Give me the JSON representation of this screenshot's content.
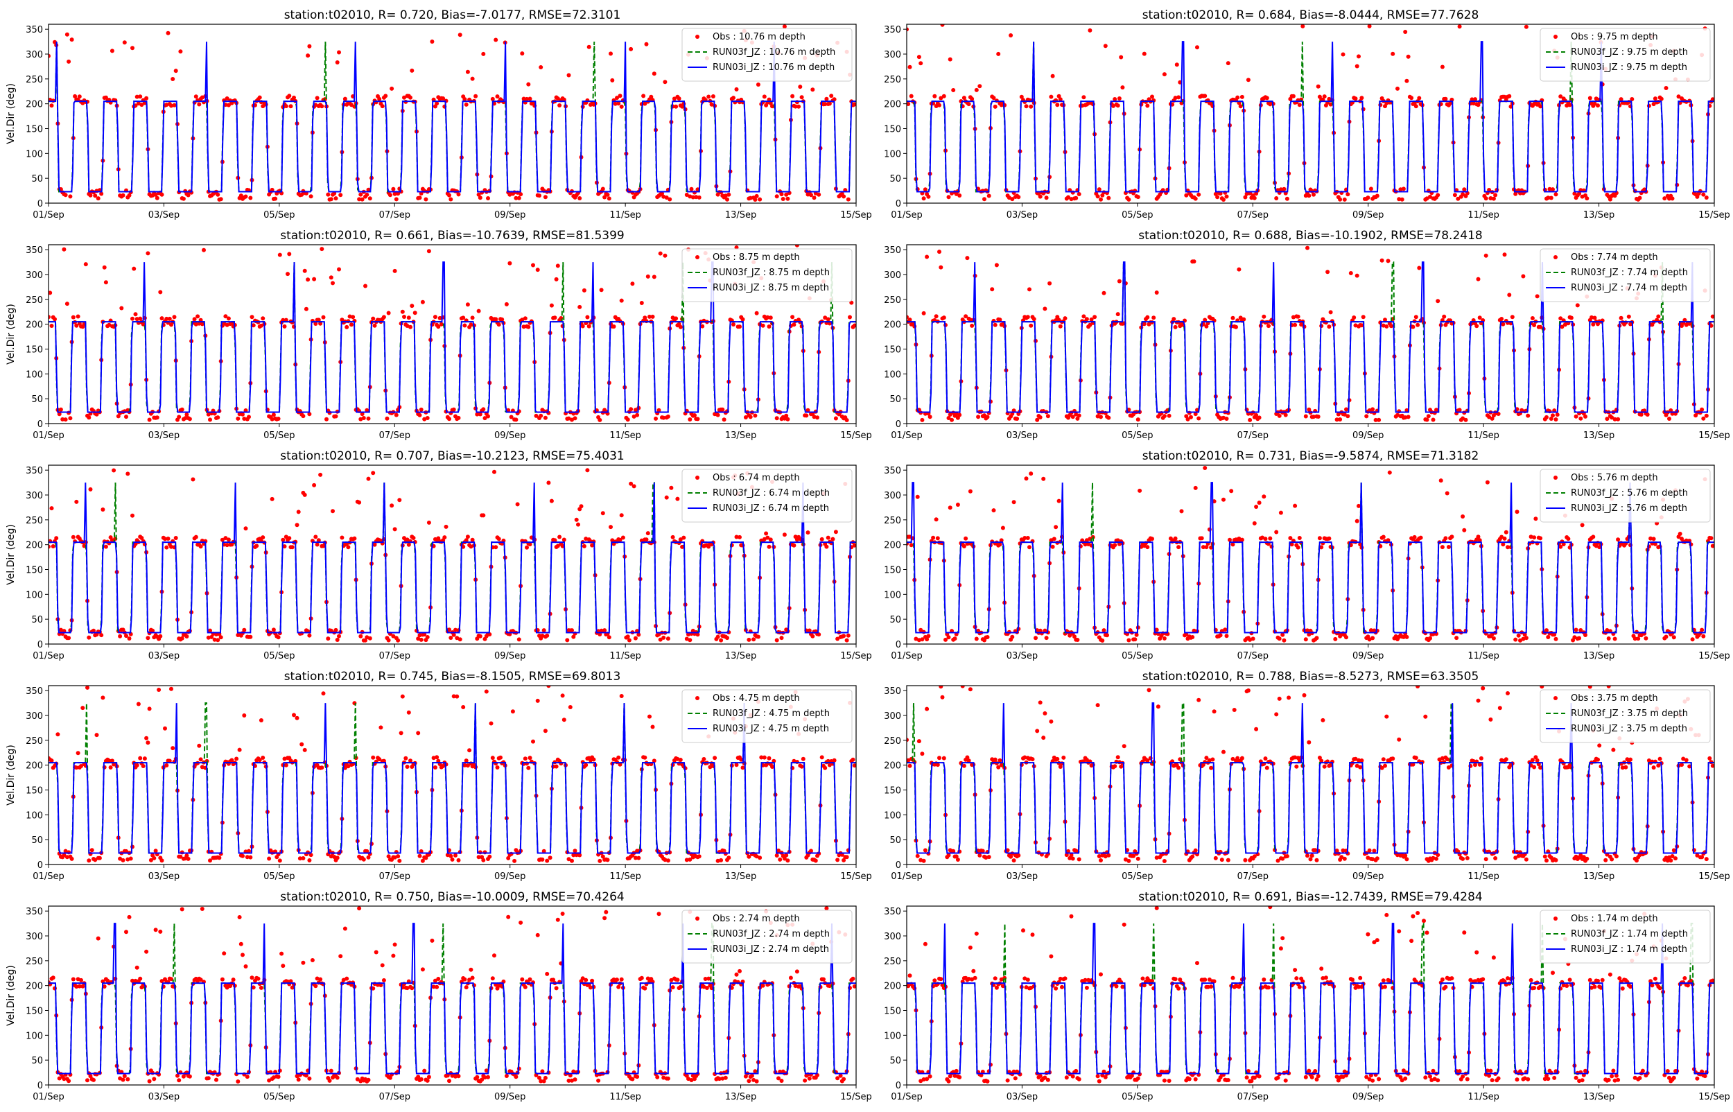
{
  "figure": {
    "colors": {
      "obs": "#ff0000",
      "run03f": "#008000",
      "run03i": "#0000ff"
    }
  },
  "chart_data": [
    {
      "type": "line",
      "title": "station:t02010, R= 0.720, Bias=-7.0177, RMSE=72.3101",
      "ylabel": "Vel.Dir (deg)",
      "xlabel": "",
      "x_ticks": [
        "01/Sep",
        "03/Sep",
        "05/Sep",
        "07/Sep",
        "09/Sep",
        "11/Sep",
        "13/Sep",
        "15/Sep"
      ],
      "y_ticks": [
        0,
        50,
        100,
        150,
        200,
        250,
        300,
        350
      ],
      "xlim": [
        0,
        14
      ],
      "ylim": [
        0,
        360
      ],
      "grid": false,
      "legend": "top-right",
      "series": [
        {
          "name": "Obs : 10.76 m depth",
          "style": "dots"
        },
        {
          "name": "RUN03f_JZ : 10.76 m depth",
          "style": "dashed"
        },
        {
          "name": "RUN03i_JZ : 10.76 m depth",
          "style": "solid"
        }
      ]
    },
    {
      "type": "line",
      "title": "station:t02010, R= 0.684, Bias=-8.0444, RMSE=77.7628",
      "ylabel": "",
      "xlabel": "",
      "x_ticks": [
        "01/Sep",
        "03/Sep",
        "05/Sep",
        "07/Sep",
        "09/Sep",
        "11/Sep",
        "13/Sep",
        "15/Sep"
      ],
      "y_ticks": [
        0,
        50,
        100,
        150,
        200,
        250,
        300,
        350
      ],
      "xlim": [
        0,
        14
      ],
      "ylim": [
        0,
        360
      ],
      "grid": false,
      "legend": "top-right",
      "series": [
        {
          "name": "Obs : 9.75 m depth",
          "style": "dots"
        },
        {
          "name": "RUN03f_JZ : 9.75 m depth",
          "style": "dashed"
        },
        {
          "name": "RUN03i_JZ : 9.75 m depth",
          "style": "solid"
        }
      ]
    },
    {
      "type": "line",
      "title": "station:t02010, R= 0.661, Bias=-10.7639, RMSE=81.5399",
      "ylabel": "Vel.Dir (deg)",
      "xlabel": "",
      "x_ticks": [
        "01/Sep",
        "03/Sep",
        "05/Sep",
        "07/Sep",
        "09/Sep",
        "11/Sep",
        "13/Sep",
        "15/Sep"
      ],
      "y_ticks": [
        0,
        50,
        100,
        150,
        200,
        250,
        300,
        350
      ],
      "xlim": [
        0,
        14
      ],
      "ylim": [
        0,
        360
      ],
      "grid": false,
      "legend": "top-right",
      "series": [
        {
          "name": "Obs : 8.75 m depth",
          "style": "dots"
        },
        {
          "name": "RUN03f_JZ : 8.75 m depth",
          "style": "dashed"
        },
        {
          "name": "RUN03i_JZ : 8.75 m depth",
          "style": "solid"
        }
      ]
    },
    {
      "type": "line",
      "title": "station:t02010, R= 0.688, Bias=-10.1902, RMSE=78.2418",
      "ylabel": "",
      "xlabel": "",
      "x_ticks": [
        "01/Sep",
        "03/Sep",
        "05/Sep",
        "07/Sep",
        "09/Sep",
        "11/Sep",
        "13/Sep",
        "15/Sep"
      ],
      "y_ticks": [
        0,
        50,
        100,
        150,
        200,
        250,
        300,
        350
      ],
      "xlim": [
        0,
        14
      ],
      "ylim": [
        0,
        360
      ],
      "grid": false,
      "legend": "top-right",
      "series": [
        {
          "name": "Obs : 7.74 m depth",
          "style": "dots"
        },
        {
          "name": "RUN03f_JZ : 7.74 m depth",
          "style": "dashed"
        },
        {
          "name": "RUN03i_JZ : 7.74 m depth",
          "style": "solid"
        }
      ]
    },
    {
      "type": "line",
      "title": "station:t02010, R= 0.707, Bias=-10.2123, RMSE=75.4031",
      "ylabel": "Vel.Dir (deg)",
      "xlabel": "",
      "x_ticks": [
        "01/Sep",
        "03/Sep",
        "05/Sep",
        "07/Sep",
        "09/Sep",
        "11/Sep",
        "13/Sep",
        "15/Sep"
      ],
      "y_ticks": [
        0,
        50,
        100,
        150,
        200,
        250,
        300,
        350
      ],
      "xlim": [
        0,
        14
      ],
      "ylim": [
        0,
        360
      ],
      "grid": false,
      "legend": "top-right",
      "series": [
        {
          "name": "Obs : 6.74 m depth",
          "style": "dots"
        },
        {
          "name": "RUN03f_JZ : 6.74 m depth",
          "style": "dashed"
        },
        {
          "name": "RUN03i_JZ : 6.74 m depth",
          "style": "solid"
        }
      ]
    },
    {
      "type": "line",
      "title": "station:t02010, R= 0.731, Bias=-9.5874, RMSE=71.3182",
      "ylabel": "",
      "xlabel": "",
      "x_ticks": [
        "01/Sep",
        "03/Sep",
        "05/Sep",
        "07/Sep",
        "09/Sep",
        "11/Sep",
        "13/Sep",
        "15/Sep"
      ],
      "y_ticks": [
        0,
        50,
        100,
        150,
        200,
        250,
        300,
        350
      ],
      "xlim": [
        0,
        14
      ],
      "ylim": [
        0,
        360
      ],
      "grid": false,
      "legend": "top-right",
      "series": [
        {
          "name": "Obs : 5.76 m depth",
          "style": "dots"
        },
        {
          "name": "RUN03f_JZ : 5.76 m depth",
          "style": "dashed"
        },
        {
          "name": "RUN03i_JZ : 5.76 m depth",
          "style": "solid"
        }
      ]
    },
    {
      "type": "line",
      "title": "station:t02010, R= 0.745, Bias=-8.1505, RMSE=69.8013",
      "ylabel": "Vel.Dir (deg)",
      "xlabel": "",
      "x_ticks": [
        "01/Sep",
        "03/Sep",
        "05/Sep",
        "07/Sep",
        "09/Sep",
        "11/Sep",
        "13/Sep",
        "15/Sep"
      ],
      "y_ticks": [
        0,
        50,
        100,
        150,
        200,
        250,
        300,
        350
      ],
      "xlim": [
        0,
        14
      ],
      "ylim": [
        0,
        360
      ],
      "grid": false,
      "legend": "top-right",
      "series": [
        {
          "name": "Obs : 4.75 m depth",
          "style": "dots"
        },
        {
          "name": "RUN03f_JZ : 4.75 m depth",
          "style": "dashed"
        },
        {
          "name": "RUN03i_JZ : 4.75 m depth",
          "style": "solid"
        }
      ]
    },
    {
      "type": "line",
      "title": "station:t02010, R= 0.788, Bias=-8.5273, RMSE=63.3505",
      "ylabel": "",
      "xlabel": "",
      "x_ticks": [
        "01/Sep",
        "03/Sep",
        "05/Sep",
        "07/Sep",
        "09/Sep",
        "11/Sep",
        "13/Sep",
        "15/Sep"
      ],
      "y_ticks": [
        0,
        50,
        100,
        150,
        200,
        250,
        300,
        350
      ],
      "xlim": [
        0,
        14
      ],
      "ylim": [
        0,
        360
      ],
      "grid": false,
      "legend": "top-right",
      "series": [
        {
          "name": "Obs : 3.75 m depth",
          "style": "dots"
        },
        {
          "name": "RUN03f_JZ : 3.75 m depth",
          "style": "dashed"
        },
        {
          "name": "RUN03i_JZ : 3.75 m depth",
          "style": "solid"
        }
      ]
    },
    {
      "type": "line",
      "title": "station:t02010, R= 0.750, Bias=-10.0009, RMSE=70.4264",
      "ylabel": "Vel.Dir (deg)",
      "xlabel": "",
      "x_ticks": [
        "01/Sep",
        "03/Sep",
        "05/Sep",
        "07/Sep",
        "09/Sep",
        "11/Sep",
        "13/Sep",
        "15/Sep"
      ],
      "y_ticks": [
        0,
        50,
        100,
        150,
        200,
        250,
        300,
        350
      ],
      "xlim": [
        0,
        14
      ],
      "ylim": [
        0,
        360
      ],
      "grid": false,
      "legend": "top-right",
      "series": [
        {
          "name": "Obs : 2.74 m depth",
          "style": "dots"
        },
        {
          "name": "RUN03f_JZ : 2.74 m depth",
          "style": "dashed"
        },
        {
          "name": "RUN03i_JZ : 2.74 m depth",
          "style": "solid"
        }
      ]
    },
    {
      "type": "line",
      "title": "station:t02010, R= 0.691, Bias=-12.7439, RMSE=79.4284",
      "ylabel": "",
      "xlabel": "",
      "x_ticks": [
        "01/Sep",
        "03/Sep",
        "05/Sep",
        "07/Sep",
        "09/Sep",
        "11/Sep",
        "13/Sep",
        "15/Sep"
      ],
      "y_ticks": [
        0,
        50,
        100,
        150,
        200,
        250,
        300,
        350
      ],
      "xlim": [
        0,
        14
      ],
      "ylim": [
        0,
        360
      ],
      "grid": false,
      "legend": "top-right",
      "series": [
        {
          "name": "Obs : 1.74 m depth",
          "style": "dots"
        },
        {
          "name": "RUN03f_JZ : 1.74 m depth",
          "style": "dashed"
        },
        {
          "name": "RUN03i_JZ : 1.74 m depth",
          "style": "solid"
        }
      ]
    }
  ]
}
